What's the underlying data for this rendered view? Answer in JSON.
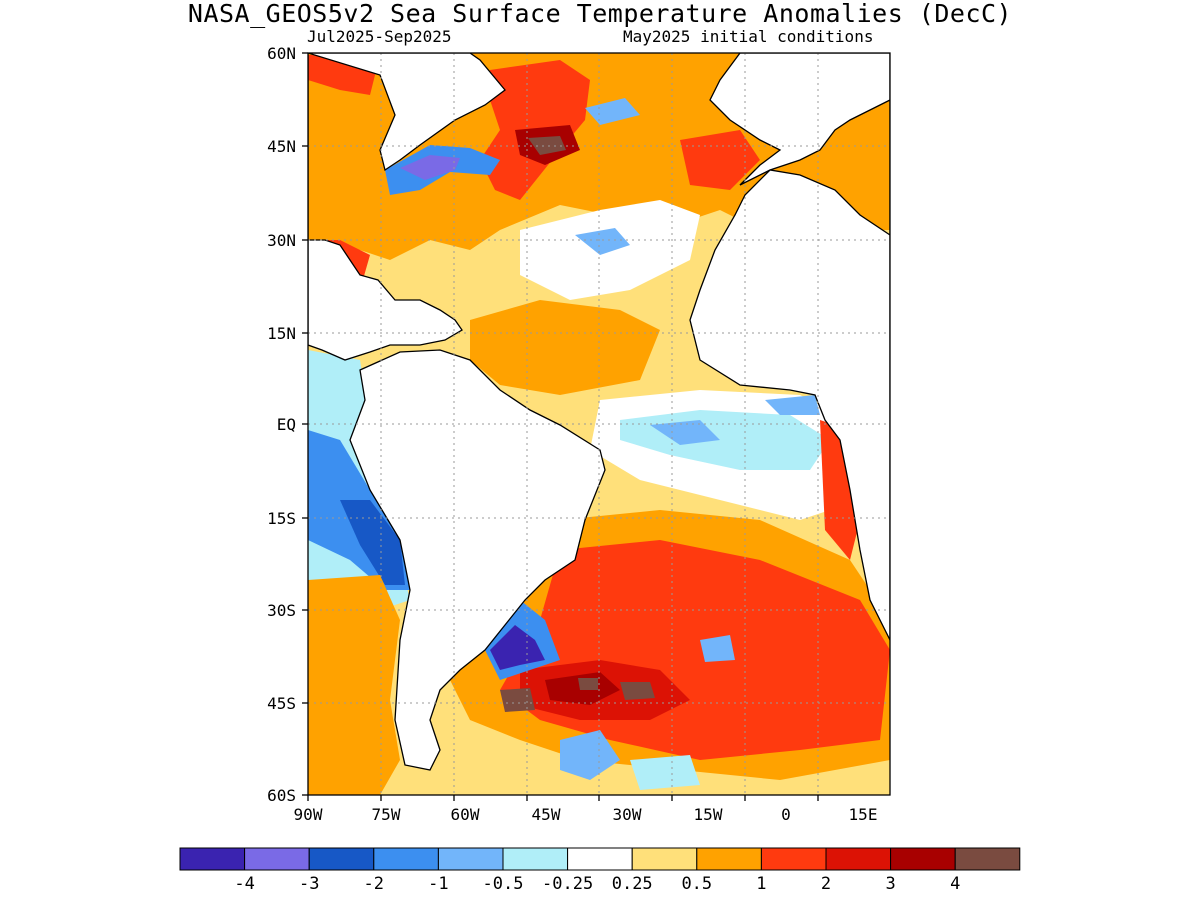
{
  "header": {
    "title": "NASA_GEOS5v2 Sea Surface Temperature Anomalies (DecC)",
    "period": "Jul2025-Sep2025",
    "init": "May2025 initial conditions"
  },
  "axes": {
    "lat_labels": [
      "60N",
      "45N",
      "30N",
      "15N",
      "EQ",
      "15S",
      "30S",
      "45S",
      "60S"
    ],
    "lon_labels": [
      "90W",
      "75W",
      "60W",
      "45W",
      "30W",
      "15W",
      "0",
      "15E"
    ]
  },
  "colorbar": {
    "colors": [
      "#3a23b0",
      "#7a6ae6",
      "#1758c6",
      "#3c8ff0",
      "#72b5fa",
      "#b0eef8",
      "#ffffff",
      "#ffe07a",
      "#ffa200",
      "#ff3a0f",
      "#dc1205",
      "#a80000",
      "#7a4b40"
    ],
    "labels": [
      "-4",
      "-3",
      "-2",
      "-1",
      "-0.5",
      "-0.25",
      "0.25",
      "0.5",
      "1",
      "2",
      "3",
      "4"
    ]
  },
  "colors": {
    "land": "#ffffff",
    "coastline": "#000000",
    "grid": "#9a9a9a"
  }
}
